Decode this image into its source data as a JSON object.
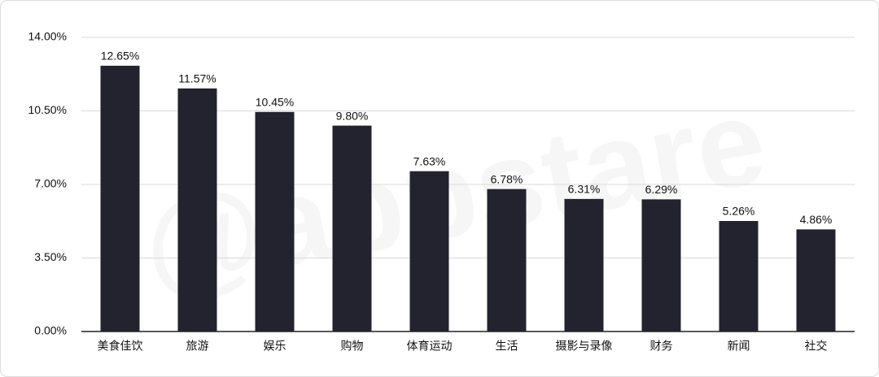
{
  "chart_data": {
    "type": "bar",
    "watermark": "@appstare",
    "categories": [
      "美食佳饮",
      "旅游",
      "娱乐",
      "购物",
      "体育运动",
      "生活",
      "摄影与录像",
      "财务",
      "新闻",
      "社交"
    ],
    "values": [
      12.65,
      11.57,
      10.45,
      9.8,
      7.63,
      6.78,
      6.31,
      6.29,
      5.26,
      4.86
    ],
    "value_labels": [
      "12.65%",
      "11.57%",
      "10.45%",
      "9.80%",
      "7.63%",
      "6.78%",
      "6.31%",
      "6.29%",
      "5.26%",
      "4.86%"
    ],
    "color": "#23232f",
    "ylim": [
      0,
      14
    ],
    "yticks": [
      {
        "value": 0,
        "label": "0.00%"
      },
      {
        "value": 3.5,
        "label": "3.50%"
      },
      {
        "value": 7,
        "label": "7.00%"
      },
      {
        "value": 10.5,
        "label": "10.50%"
      },
      {
        "value": 14,
        "label": "14.00%"
      }
    ],
    "grid": true
  }
}
